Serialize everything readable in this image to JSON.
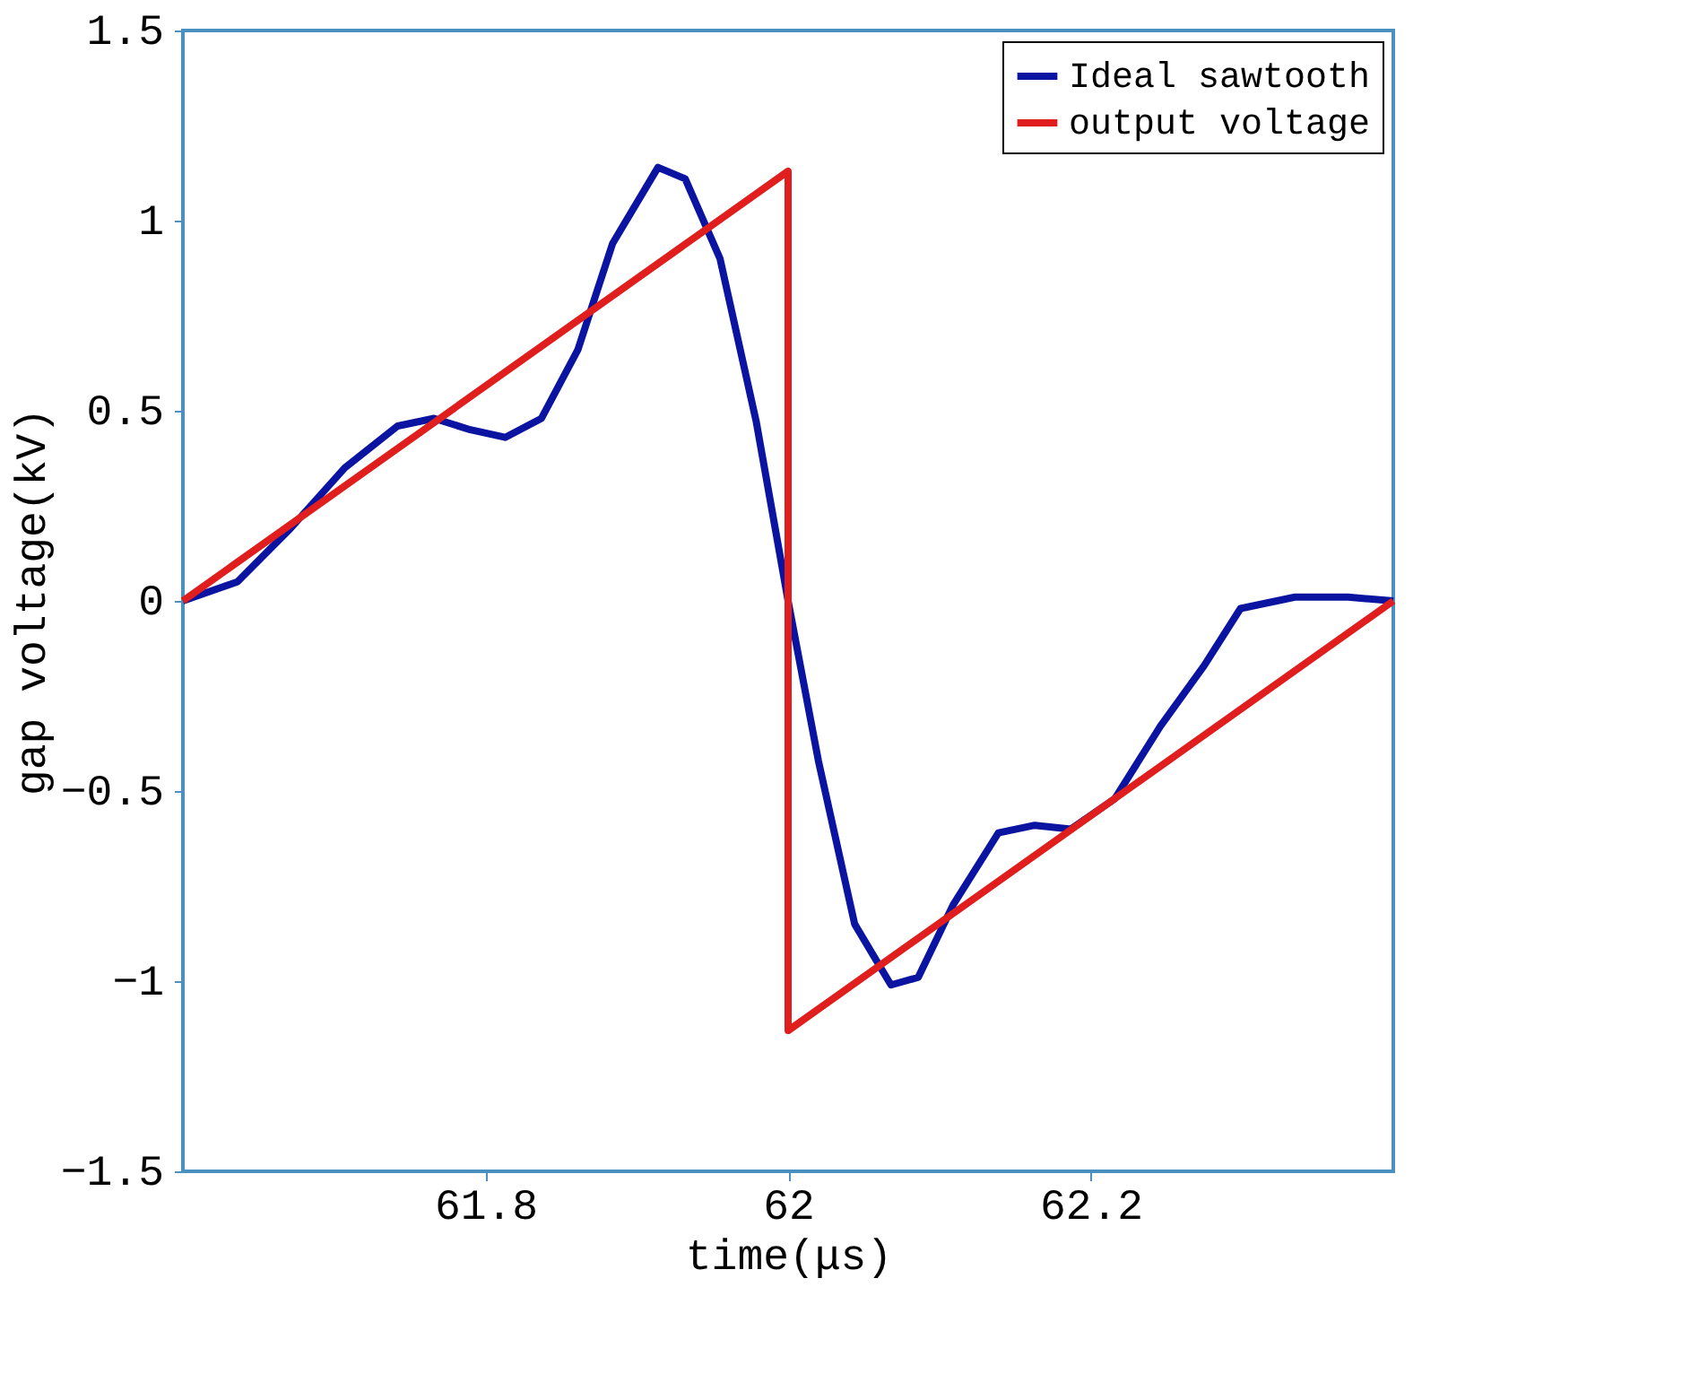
{
  "chart_data": {
    "type": "line",
    "xlabel": "time(μs)",
    "ylabel": "gap voltage(kV)",
    "xlim": [
      61.6,
      62.4
    ],
    "xticks": [
      61.8,
      62,
      62.2
    ],
    "ylim": [
      -1.5,
      1.5
    ],
    "yticks": [
      -1.5,
      -1,
      -0.5,
      0,
      0.5,
      1,
      1.5
    ],
    "grid": false,
    "legend": "top right",
    "line_style": "solid",
    "marker": "none",
    "series": [
      {
        "name": "Ideal sawtooth",
        "color": "#0a14a0",
        "x": [
          61.6,
          61.636,
          61.671,
          61.707,
          61.742,
          61.766,
          61.79,
          61.813,
          61.837,
          61.861,
          61.884,
          61.914,
          61.932,
          61.955,
          61.979,
          62.0,
          62.02,
          62.044,
          62.068,
          62.086,
          62.109,
          62.139,
          62.163,
          62.187,
          62.216,
          62.246,
          62.275,
          62.299,
          62.335,
          62.37,
          62.4
        ],
        "values": [
          0,
          0.05,
          0.19,
          0.35,
          0.46,
          0.48,
          0.45,
          0.43,
          0.48,
          0.66,
          0.94,
          1.14,
          1.11,
          0.9,
          0.47,
          0,
          -0.42,
          -0.85,
          -1.01,
          -0.99,
          -0.8,
          -0.61,
          -0.59,
          -0.6,
          -0.52,
          -0.33,
          -0.17,
          -0.02,
          0.01,
          0.01,
          0
        ]
      },
      {
        "name": "output voltage",
        "color": "#e01e1e",
        "x": [
          61.6,
          62,
          62,
          62.4
        ],
        "values": [
          0,
          1.13,
          -1.13,
          0
        ]
      }
    ]
  }
}
